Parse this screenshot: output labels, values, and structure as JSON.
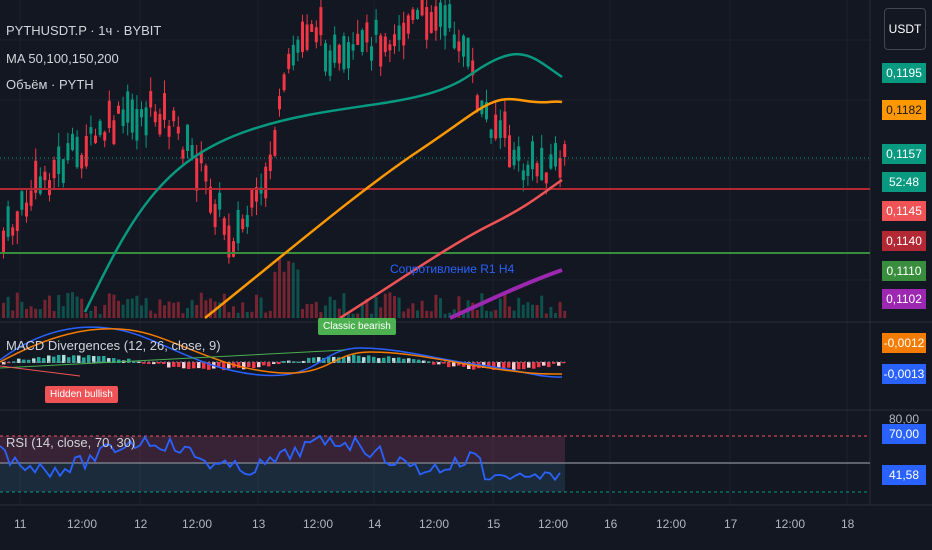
{
  "legend": {
    "symbol": "PYTHUSDT.P · 1ч · BYBIT",
    "ma": "MA 50,100,150,200",
    "volume": "Объём · PYTH"
  },
  "currency_button": "USDT",
  "price_badges": [
    {
      "label": "0,1195",
      "color": "#089981"
    },
    {
      "label": "0,1182",
      "color": "#ff9800"
    },
    {
      "label": "0,1157",
      "color": "#089981"
    },
    {
      "label": "52:48",
      "color": "#089981"
    },
    {
      "label": "0,1145",
      "color": "#f05356"
    },
    {
      "label": "0,1140",
      "color": "#b22833"
    },
    {
      "label": "0,1110",
      "color": "#388e3c"
    },
    {
      "label": "0,1102",
      "color": "#9c27b0"
    }
  ],
  "macd": {
    "label": "MACD Divergences (12, 26, close, 9)",
    "badges": [
      {
        "label": "-0,0012",
        "color": "#f57c00"
      },
      {
        "label": "-0,0013",
        "color": "#2962ff"
      }
    ],
    "signal_bearish": "Classic bearish",
    "signal_bullish": "Hidden bullish"
  },
  "rsi": {
    "label": "RSI (14, close, 70, 30)",
    "badges": [
      {
        "label": "70,00",
        "color": "#2962ff"
      },
      {
        "label": "41,58",
        "color": "#2962ff"
      }
    ],
    "axis_labels": [
      "80,00"
    ]
  },
  "annotation": "Сопротивление R1 H4",
  "time_axis": [
    "11",
    "12:00",
    "12",
    "12:00",
    "13",
    "12:00",
    "14",
    "12:00",
    "15",
    "12:00",
    "16",
    "12:00",
    "17",
    "12:00",
    "18"
  ],
  "colors": {
    "ma50": "#f05356",
    "ma100": "#ff9800",
    "ma150": "#089981",
    "ma200": "#9c27b0",
    "resistance_red": "#b22833",
    "support_green": "#388e3c",
    "macd_line": "#2962ff",
    "signal_line": "#f57c00",
    "rsi_line": "#2962ff"
  }
}
